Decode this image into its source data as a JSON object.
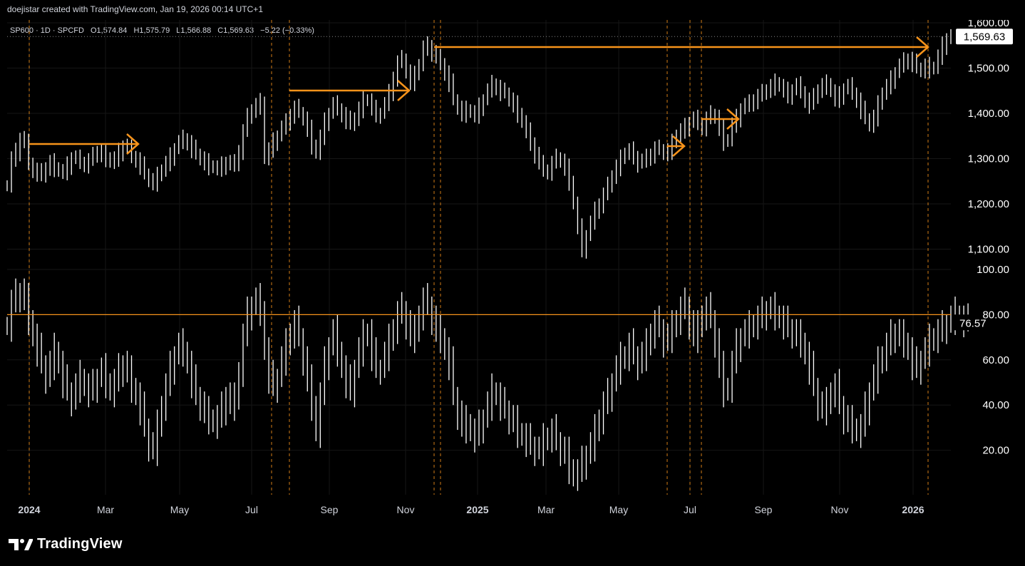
{
  "header": {
    "credit": "doejistar created with TradingView.com, Jan 19, 2026 00:14 UTC+1"
  },
  "legend": {
    "symbol": "SP600 · 1D · SPCFD",
    "open_label": "O",
    "open": "1,574.84",
    "high_label": "H",
    "high": "1,575.79",
    "low_label": "L",
    "low": "1,566.88",
    "close_label": "C",
    "close": "1,569.63",
    "change": "−5.22 (−0.33%)"
  },
  "footer": {
    "brand": "TradingView"
  },
  "colors": {
    "background": "#000000",
    "bars": "#ffffff",
    "accent": "#f7931a",
    "text": "#d1d4dc"
  },
  "chart_data": [
    {
      "type": "line",
      "title": "SP600 · 1D · SPCFD",
      "x_start": "2023-12",
      "x_ticks": [
        "2024",
        "Mar",
        "May",
        "Jul",
        "Sep",
        "Nov",
        "2025",
        "Mar",
        "May",
        "Jul",
        "Sep",
        "Nov",
        "2026"
      ],
      "y_ticks": [
        "1,600.00",
        "1,500.00",
        "1,400.00",
        "1,300.00",
        "1,200.00",
        "1,100.00"
      ],
      "ylim": [
        1060,
        1610
      ],
      "last_price_label": "1,569.63",
      "series": [
        {
          "values": [
            1240,
            1300,
            1315,
            1345,
            1335,
            1290,
            1275,
            1270,
            1262,
            1280,
            1292,
            1280,
            1272,
            1270,
            1285,
            1302,
            1300,
            1292,
            1288,
            1296,
            1306,
            1316,
            1310,
            1302,
            1292,
            1300,
            1315,
            1328,
            1322,
            1305,
            1298,
            1285,
            1266,
            1252,
            1248,
            1262,
            1275,
            1290,
            1305,
            1322,
            1336,
            1344,
            1336,
            1322,
            1310,
            1300,
            1292,
            1284,
            1280,
            1278,
            1285,
            1292,
            1286,
            1290,
            1318,
            1360,
            1392,
            1408,
            1418,
            1425,
            1300,
            1320,
            1338,
            1350,
            1368,
            1380,
            1398,
            1412,
            1402,
            1388,
            1366,
            1330,
            1312,
            1348,
            1382,
            1400,
            1420,
            1410,
            1398,
            1386,
            1376,
            1390,
            1410,
            1430,
            1428,
            1410,
            1398,
            1400,
            1420,
            1445,
            1480,
            1512,
            1520,
            1492,
            1470,
            1485,
            1508,
            1545,
            1550,
            1535,
            1522,
            1510,
            1490,
            1468,
            1430,
            1412,
            1400,
            1408,
            1402,
            1395,
            1415,
            1430,
            1450,
            1465,
            1458,
            1448,
            1445,
            1430,
            1420,
            1400,
            1380,
            1360,
            1335,
            1310,
            1288,
            1275,
            1272,
            1290,
            1302,
            1295,
            1280,
            1250,
            1200,
            1148,
            1100,
            1130,
            1158,
            1185,
            1200,
            1220,
            1240,
            1262,
            1282,
            1300,
            1312,
            1318,
            1305,
            1290,
            1295,
            1302,
            1310,
            1322,
            1320,
            1312,
            1318,
            1335,
            1352,
            1362,
            1370,
            1380,
            1388,
            1378,
            1370,
            1388,
            1398,
            1392,
            1368,
            1338,
            1342,
            1375,
            1390,
            1410,
            1418,
            1422,
            1430,
            1438,
            1445,
            1452,
            1460,
            1468,
            1460,
            1450,
            1440,
            1452,
            1462,
            1448,
            1430,
            1420,
            1436,
            1452,
            1462,
            1466,
            1448,
            1430,
            1440,
            1454,
            1460,
            1445,
            1430,
            1408,
            1388,
            1375,
            1392,
            1420,
            1445,
            1460,
            1475,
            1490,
            1505,
            1515,
            1520,
            1512,
            1500,
            1495,
            1505,
            1498,
            1502,
            1525,
            1550,
            1565,
            1570
          ]
        }
      ]
    },
    {
      "type": "line",
      "y_ticks": [
        "100.00",
        "80.00",
        "60.00",
        "40.00",
        "20.00"
      ],
      "ylim": [
        2,
        100
      ],
      "reference_level": 80,
      "last_value_label": "76.57",
      "series": [
        {
          "values": [
            75,
            85,
            88,
            90,
            86,
            78,
            70,
            64,
            58,
            52,
            58,
            64,
            58,
            50,
            46,
            42,
            48,
            52,
            48,
            46,
            48,
            52,
            55,
            50,
            46,
            50,
            55,
            58,
            54,
            48,
            44,
            38,
            30,
            22,
            20,
            30,
            40,
            48,
            56,
            62,
            66,
            64,
            58,
            50,
            44,
            40,
            36,
            34,
            32,
            34,
            38,
            44,
            40,
            42,
            55,
            70,
            80,
            84,
            86,
            82,
            64,
            52,
            48,
            52,
            60,
            66,
            72,
            76,
            70,
            60,
            50,
            40,
            28,
            44,
            58,
            66,
            72,
            64,
            56,
            50,
            46,
            56,
            64,
            70,
            72,
            62,
            56,
            56,
            62,
            68,
            74,
            80,
            82,
            76,
            70,
            72,
            80,
            86,
            84,
            78,
            72,
            70,
            64,
            58,
            44,
            36,
            30,
            32,
            28,
            26,
            30,
            34,
            40,
            46,
            44,
            40,
            38,
            34,
            32,
            28,
            26,
            24,
            22,
            20,
            20,
            24,
            26,
            28,
            24,
            20,
            18,
            12,
            8,
            10,
            14,
            18,
            22,
            28,
            34,
            40,
            44,
            50,
            56,
            60,
            62,
            66,
            62,
            58,
            62,
            66,
            72,
            76,
            74,
            68,
            70,
            74,
            78,
            82,
            84,
            76,
            70,
            74,
            80,
            82,
            78,
            68,
            56,
            46,
            48,
            58,
            66,
            70,
            72,
            74,
            76,
            78,
            80,
            82,
            82,
            80,
            78,
            76,
            74,
            72,
            70,
            68,
            62,
            56,
            48,
            40,
            38,
            40,
            46,
            48,
            40,
            34,
            32,
            30,
            28,
            30,
            38,
            46,
            52,
            58,
            62,
            66,
            70,
            72,
            70,
            68,
            64,
            58,
            56,
            60,
            64,
            68,
            70,
            72,
            74,
            76,
            78,
            80,
            78,
            77,
            76.57
          ]
        }
      ]
    }
  ]
}
